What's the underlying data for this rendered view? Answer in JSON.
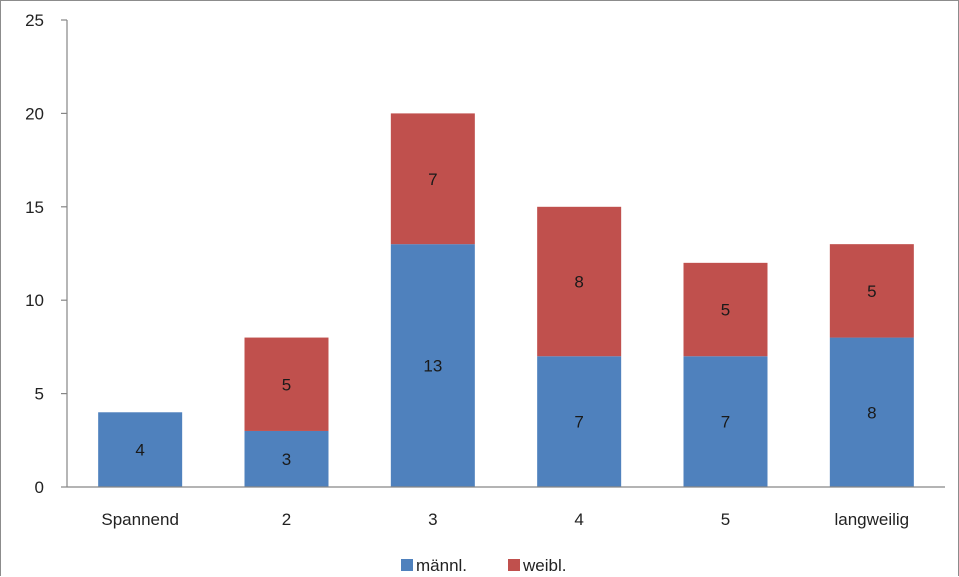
{
  "chart_data": {
    "type": "bar",
    "stacked": true,
    "categories": [
      "Spannend",
      "2",
      "3",
      "4",
      "5",
      "langweilig"
    ],
    "series": [
      {
        "name": "männl.",
        "values": [
          4,
          3,
          13,
          7,
          7,
          8
        ],
        "color": "#4f81bd"
      },
      {
        "name": "weibl.",
        "values": [
          0,
          5,
          7,
          8,
          5,
          5
        ],
        "color": "#c0504d"
      }
    ],
    "ylim": [
      0,
      25
    ],
    "yticks": [
      0,
      5,
      10,
      15,
      20,
      25
    ],
    "grid": false,
    "legend": "bottom",
    "axis_color": "#868686"
  }
}
